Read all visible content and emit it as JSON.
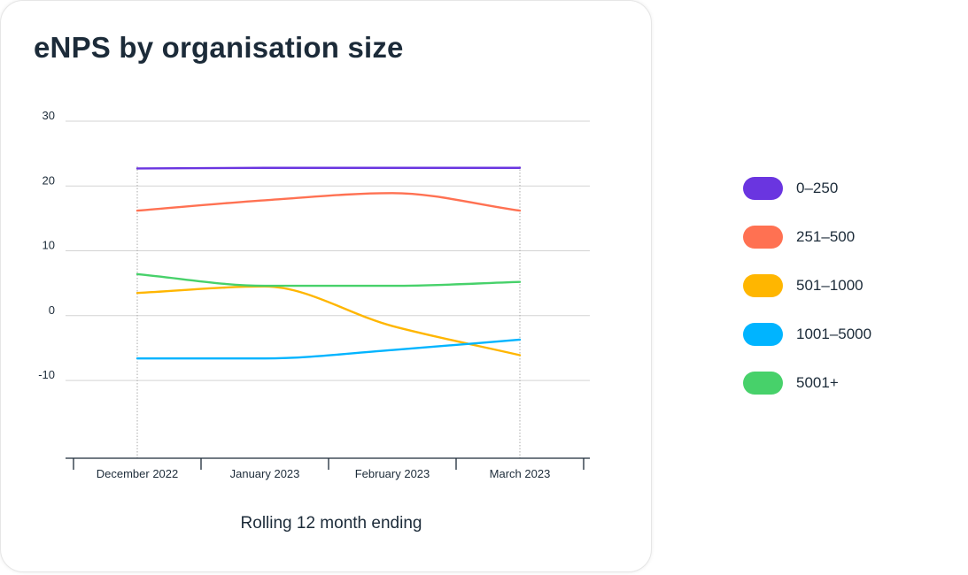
{
  "chart_data": {
    "type": "line",
    "title": "eNPS by organisation size",
    "xlabel": "Rolling 12 month ending",
    "ylabel": "",
    "categories": [
      "December 2022",
      "January 2023",
      "February 2023",
      "March 2023"
    ],
    "ylim": [
      -22,
      30
    ],
    "yticks": [
      30,
      20,
      10,
      0,
      -10
    ],
    "grid": true,
    "legend_position": "right",
    "series": [
      {
        "name": "0–250",
        "color": "#6a35e0",
        "values": [
          22.7,
          22.8,
          22.8,
          22.8
        ]
      },
      {
        "name": "251–500",
        "color": "#ff7152",
        "values": [
          16.2,
          17.8,
          18.9,
          16.2
        ]
      },
      {
        "name": "501–1000",
        "color": "#ffb600",
        "values": [
          3.5,
          4.5,
          -1.6,
          -6.1
        ]
      },
      {
        "name": "1001–5000",
        "color": "#00b4ff",
        "values": [
          -6.6,
          -6.6,
          -5.3,
          -3.7
        ]
      },
      {
        "name": "5001+",
        "color": "#47d16a",
        "values": [
          6.4,
          4.6,
          4.6,
          5.2
        ]
      }
    ]
  }
}
